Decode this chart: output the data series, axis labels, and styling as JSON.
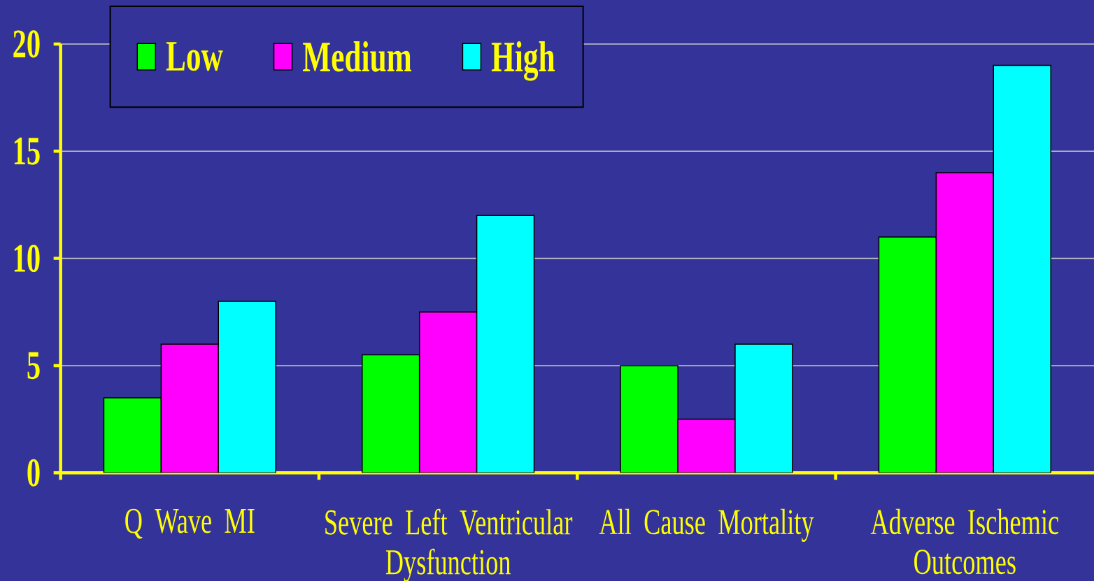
{
  "chart_data": {
    "type": "bar",
    "categories": [
      "Q Wave MI",
      "Severe Left Ventricular Dysfunction",
      "All Cause Mortality",
      "Adverse Ischemic Outcomes"
    ],
    "series": [
      {
        "name": "Low",
        "color": "#00ff00",
        "values": [
          3.5,
          5.5,
          5,
          11
        ]
      },
      {
        "name": "Medium",
        "color": "#ff00ff",
        "values": [
          6,
          7.5,
          2.5,
          14
        ]
      },
      {
        "name": "High",
        "color": "#00ffff",
        "values": [
          8,
          12,
          6,
          19
        ]
      }
    ],
    "ylim": [
      0,
      20
    ],
    "yticks": [
      0,
      5,
      10,
      15,
      20
    ],
    "grid": "y",
    "legend": "top left"
  }
}
